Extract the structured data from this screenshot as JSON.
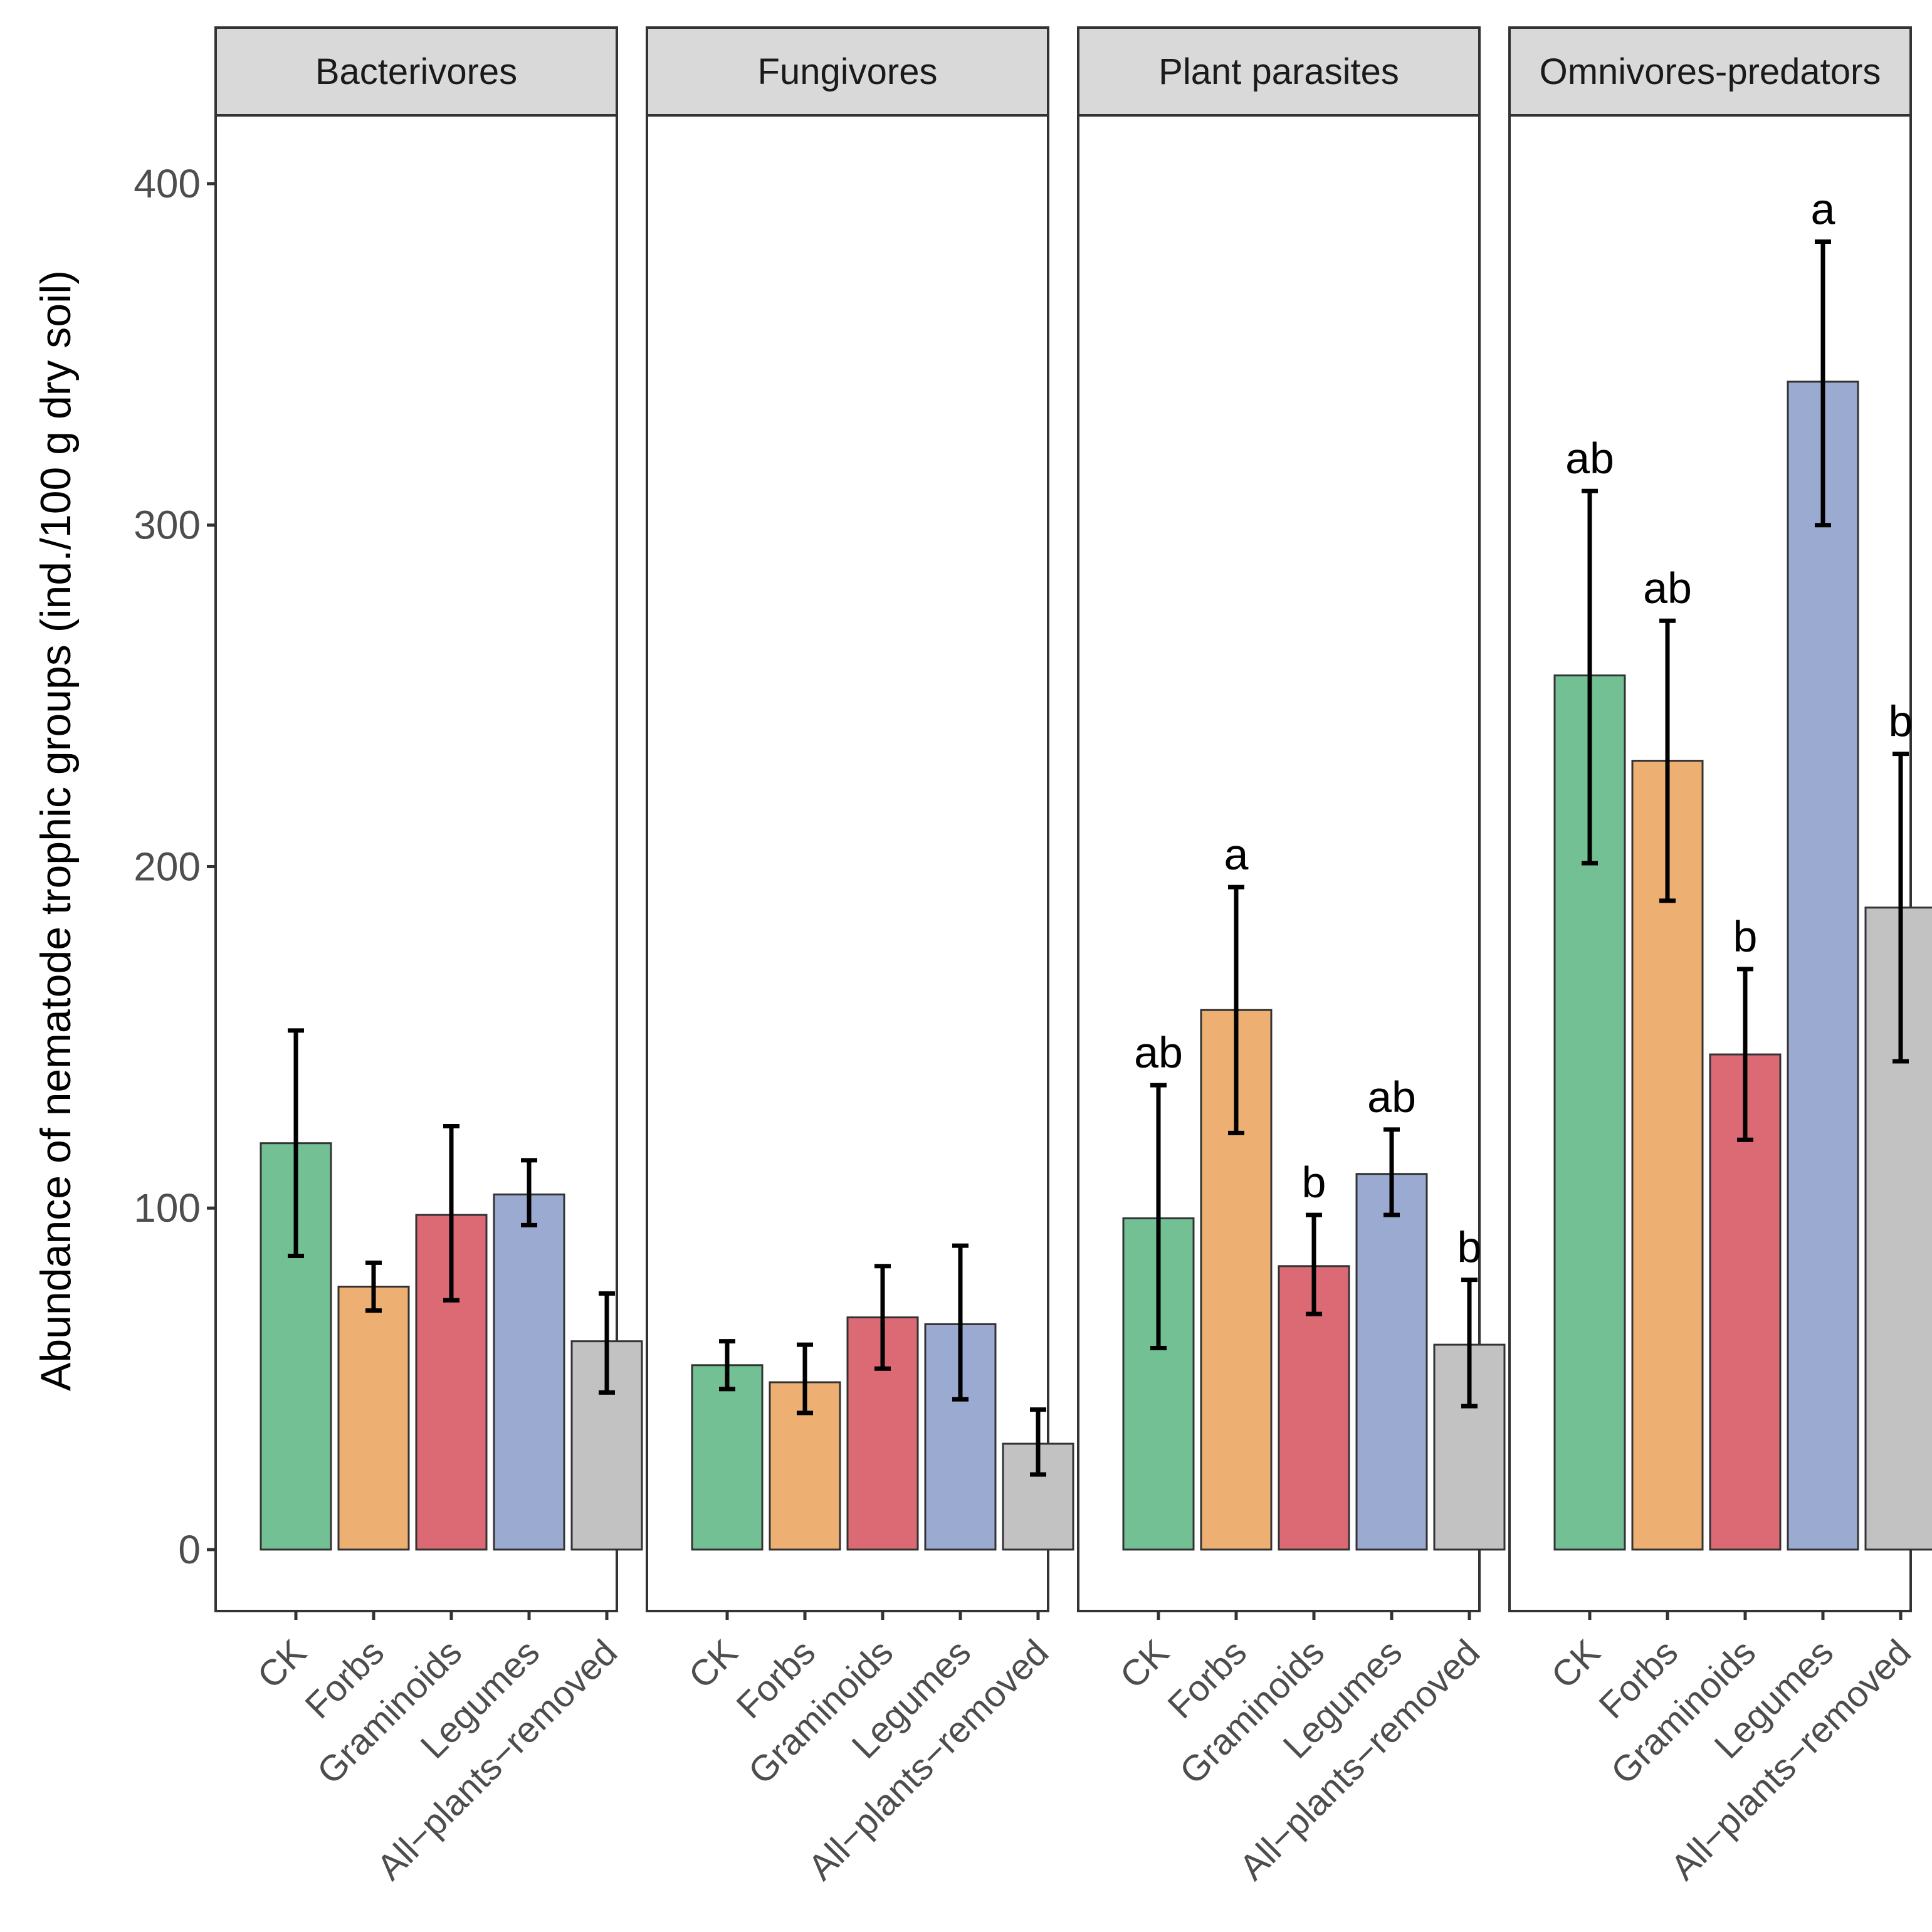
{
  "chart_data": {
    "type": "bar",
    "ylabel": "Abundance of nematode trophic groups (ind./100 g dry soil)",
    "xlabel": "",
    "ylim": [
      -18,
      420
    ],
    "yticks": [
      0,
      100,
      200,
      300,
      400
    ],
    "ytick_labels": [
      "0",
      "100",
      "200",
      "300",
      "400"
    ],
    "categories": [
      "CK",
      "Forbs",
      "Graminoids",
      "Legumes",
      "All−plants−removed"
    ],
    "colors": {
      "CK": "#73c095",
      "Forbs": "#edb072",
      "Graminoids": "#dc6a74",
      "Legumes": "#9aaad0",
      "All−plants−removed": "#c2c2c2"
    },
    "panels": [
      {
        "title": "Bacterivores",
        "values": [
          119,
          77,
          98,
          104,
          61
        ],
        "err_low": [
          86,
          70,
          73,
          95,
          46
        ],
        "err_high": [
          152,
          84,
          124,
          114,
          75
        ],
        "letters": [
          "",
          "",
          "",
          "",
          ""
        ]
      },
      {
        "title": "Fungivores",
        "values": [
          54,
          49,
          68,
          66,
          31
        ],
        "err_low": [
          47,
          40,
          53,
          44,
          22
        ],
        "err_high": [
          61,
          60,
          83,
          89,
          41
        ],
        "letters": [
          "",
          "",
          "",
          "",
          ""
        ]
      },
      {
        "title": "Plant parasites",
        "values": [
          97,
          158,
          83,
          110,
          60
        ],
        "err_low": [
          59,
          122,
          69,
          98,
          42
        ],
        "err_high": [
          136,
          194,
          98,
          123,
          79
        ],
        "letters": [
          "ab",
          "a",
          "b",
          "ab",
          "b"
        ]
      },
      {
        "title": "Omnivores-predators",
        "values": [
          256,
          231,
          145,
          342,
          188
        ],
        "err_low": [
          201,
          190,
          120,
          300,
          143
        ],
        "err_high": [
          310,
          272,
          170,
          383,
          233
        ],
        "letters": [
          "ab",
          "ab",
          "b",
          "a",
          "b"
        ]
      }
    ]
  }
}
